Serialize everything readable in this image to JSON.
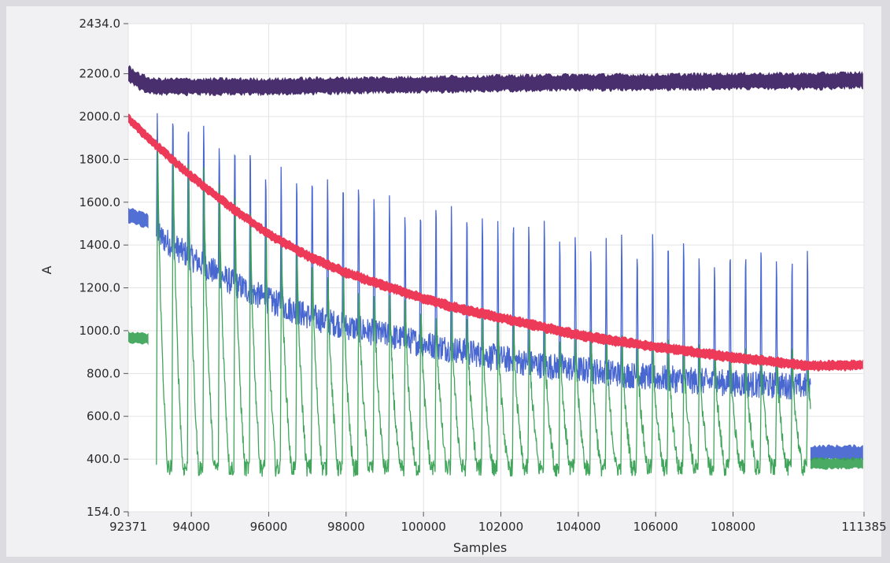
{
  "chart_data": {
    "type": "line",
    "title": "",
    "xlabel": "Samples",
    "ylabel": "A",
    "xlim": [
      92371,
      111385
    ],
    "ylim": [
      154.0,
      2434.0
    ],
    "x_tick_labels": [
      "92371",
      "94000",
      "96000",
      "98000",
      "100000",
      "102000",
      "104000",
      "106000",
      "108000",
      "111385"
    ],
    "x_tick_values": [
      92371,
      94000,
      96000,
      98000,
      100000,
      102000,
      104000,
      106000,
      108000,
      111385
    ],
    "y_tick_labels": [
      "154.0",
      "400.0",
      "600.0",
      "800.0",
      "1000.0",
      "1200.0",
      "1400.0",
      "1600.0",
      "1800.0",
      "2000.0",
      "2200.0",
      "2434.0"
    ],
    "y_tick_values": [
      154,
      400,
      600,
      800,
      1000,
      1200,
      1400,
      1600,
      1800,
      2000,
      2200,
      2434
    ],
    "grid": true,
    "series": [
      {
        "color": "#4a2f6e",
        "x": [
          92371,
          92700,
          93000,
          94000,
          96000,
          98000,
          100000,
          102000,
          104000,
          106000,
          108000,
          110000,
          111385
        ],
        "values": [
          2200,
          2160,
          2140,
          2140,
          2140,
          2145,
          2150,
          2155,
          2160,
          2160,
          2165,
          2165,
          2170
        ],
        "band_halfwidth": 45
      },
      {
        "color": "#ec3a58",
        "x": [
          92371,
          93000,
          94000,
          95000,
          96000,
          97000,
          98000,
          99000,
          100000,
          101000,
          102000,
          103000,
          104000,
          105000,
          106000,
          107000,
          108000,
          109000,
          110000,
          111385
        ],
        "values": [
          1990,
          1880,
          1720,
          1580,
          1450,
          1350,
          1270,
          1210,
          1150,
          1100,
          1060,
          1020,
          980,
          950,
          925,
          900,
          875,
          855,
          835,
          840
        ],
        "band_halfwidth": 28
      },
      {
        "color": "#3f5fcf",
        "band_halfwidth": 40,
        "pre": {
          "x": [
            92371,
            92900
          ],
          "values": [
            1540,
            1510
          ]
        },
        "spike_period": 400,
        "spike_start": 93100,
        "spike_end": 110000,
        "baseline": {
          "x": [
            93100,
            94000,
            95000,
            96000,
            97000,
            98000,
            99000,
            100000,
            101000,
            102000,
            103000,
            104000,
            105000,
            106000,
            107000,
            108000,
            109000,
            110000
          ],
          "values": [
            1450,
            1340,
            1230,
            1140,
            1070,
            1020,
            980,
            940,
            905,
            870,
            840,
            820,
            800,
            780,
            765,
            755,
            745,
            740
          ]
        },
        "peaks": {
          "x": [
            93100,
            94000,
            95000,
            96000,
            97000,
            98000,
            99000,
            100000,
            101000,
            102000,
            103000,
            104000,
            105000,
            106000,
            107000,
            108000,
            109000,
            110000
          ],
          "values": [
            2080,
            2070,
            1980,
            1880,
            1820,
            1780,
            1730,
            1690,
            1650,
            1620,
            1590,
            1560,
            1530,
            1510,
            1490,
            1470,
            1450,
            1430
          ]
        },
        "post": {
          "x": [
            110000,
            111385
          ],
          "values": [
            430,
            430
          ]
        }
      },
      {
        "color": "#36a052",
        "band_halfwidth": 30,
        "pre": {
          "x": [
            92371,
            92900
          ],
          "values": [
            970,
            960
          ]
        },
        "spike_period": 400,
        "spike_start": 93100,
        "spike_end": 110000,
        "trough": 360,
        "peaks": {
          "x": [
            93100,
            94000,
            95000,
            96000,
            97000,
            98000,
            99000,
            100000,
            101000,
            102000,
            103000,
            104000,
            105000,
            106000,
            107000,
            108000,
            109000,
            110000
          ],
          "values": [
            2000,
            1870,
            1700,
            1540,
            1400,
            1300,
            1220,
            1160,
            1110,
            1070,
            1040,
            1010,
            990,
            970,
            950,
            940,
            930,
            920
          ]
        },
        "post": {
          "x": [
            110000,
            111385
          ],
          "values": [
            380,
            380
          ]
        }
      }
    ]
  }
}
